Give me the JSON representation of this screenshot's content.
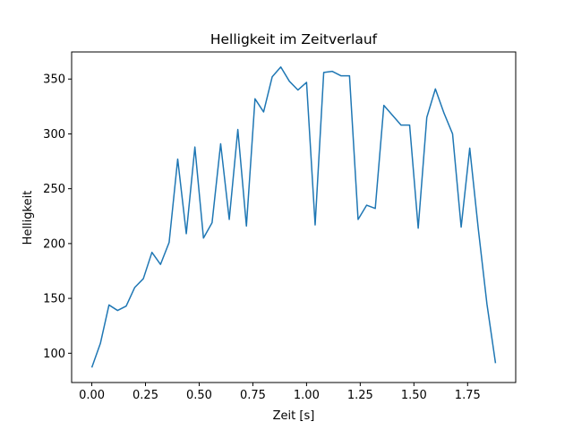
{
  "chart_data": {
    "type": "line",
    "title": "Helligkeit im Zeitverlauf",
    "xlabel": "Zeit [s]",
    "ylabel": "Helligkeit",
    "xlim": [
      -0.094,
      1.974
    ],
    "ylim": [
      73.3,
      374.7
    ],
    "xticks": [
      0.0,
      0.25,
      0.5,
      0.75,
      1.0,
      1.25,
      1.5,
      1.75
    ],
    "xtick_labels": [
      "0.00",
      "0.25",
      "0.50",
      "0.75",
      "1.00",
      "1.25",
      "1.50",
      "1.75"
    ],
    "yticks": [
      100,
      150,
      200,
      250,
      300,
      350
    ],
    "ytick_labels": [
      "100",
      "150",
      "200",
      "250",
      "300",
      "350"
    ],
    "grid": false,
    "series": [
      {
        "color": "#1f77b4",
        "x": [
          0.0,
          0.04,
          0.08,
          0.12,
          0.16,
          0.2,
          0.24,
          0.28,
          0.32,
          0.36,
          0.4,
          0.44,
          0.48,
          0.52,
          0.56,
          0.6,
          0.64,
          0.68,
          0.72,
          0.76,
          0.8,
          0.84,
          0.88,
          0.92,
          0.96,
          1.0,
          1.04,
          1.08,
          1.12,
          1.16,
          1.2,
          1.24,
          1.28,
          1.32,
          1.36,
          1.4,
          1.44,
          1.48,
          1.52,
          1.56,
          1.6,
          1.64,
          1.68,
          1.72,
          1.76,
          1.8,
          1.84,
          1.88
        ],
        "y": [
          87,
          109,
          144,
          139,
          143,
          160,
          168,
          192,
          181,
          201,
          277,
          209,
          288,
          205,
          219,
          291,
          222,
          304,
          216,
          332,
          320,
          352,
          361,
          348,
          340,
          347,
          217,
          356,
          357,
          353,
          353,
          222,
          235,
          232,
          326,
          317,
          308,
          308,
          214,
          315,
          341,
          319,
          300,
          215,
          287,
          213,
          145,
          91
        ]
      }
    ]
  }
}
